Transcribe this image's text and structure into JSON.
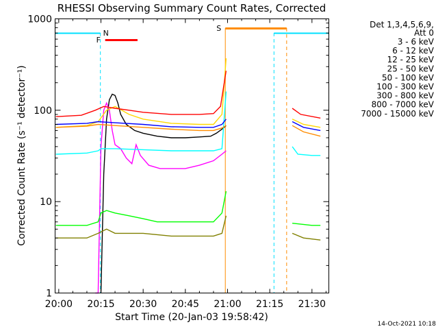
{
  "chart_data": {
    "type": "line",
    "title": "RHESSI Observing Summary Count Rates, Corrected",
    "xlabel": "Start Time (20-Jan-03 19:58:42)",
    "ylabel": "Corrected Count Rate (s⁻¹ detector⁻¹)",
    "y_scale": "log",
    "ylim": [
      1,
      1000
    ],
    "xlim_minutes_after_20:00": [
      -1.3,
      96
    ],
    "x_ticks": [
      {
        "value": 0,
        "label": "20:00"
      },
      {
        "value": 15,
        "label": "20:15"
      },
      {
        "value": 30,
        "label": "20:30"
      },
      {
        "value": 45,
        "label": "20:45"
      },
      {
        "value": 60,
        "label": "21:00"
      },
      {
        "value": 75,
        "label": "21:15"
      },
      {
        "value": 90,
        "label": "21:30"
      }
    ],
    "y_ticks": [
      {
        "value": 1,
        "label": "1"
      },
      {
        "value": 10,
        "label": "10"
      },
      {
        "value": 100,
        "label": "100"
      },
      {
        "value": 1000,
        "label": "1000"
      }
    ],
    "legend_header": [
      "Det 1,3,4,5,6,9,",
      "Att 0"
    ],
    "legend_position": "top-right",
    "timestamp": "14-Oct-2021 10:18",
    "flag_labels": {
      "night": "N",
      "flare": "F",
      "saa": "S"
    },
    "flag_colors": {
      "night": "#00e0ff",
      "flare": "#ff0000",
      "saa": "#ff8c00"
    },
    "flags": {
      "night": [
        [
          -1.3,
          14.8
        ],
        [
          76.5,
          96
        ]
      ],
      "flare": [
        [
          16.5,
          28
        ]
      ],
      "saa": [
        [
          59.2,
          81.0
        ]
      ]
    },
    "gaps": [
      [
        60,
        83
      ]
    ],
    "series": [
      {
        "name": "3 - 6 keV",
        "color": "#000000",
        "points": [
          [
            15,
            1
          ],
          [
            16,
            20
          ],
          [
            17,
            80
          ],
          [
            18,
            130
          ],
          [
            19,
            150
          ],
          [
            20,
            145
          ],
          [
            21,
            120
          ],
          [
            22,
            90
          ],
          [
            24,
            70
          ],
          [
            27,
            60
          ],
          [
            30,
            56
          ],
          [
            35,
            52
          ],
          [
            40,
            50
          ],
          [
            45,
            50
          ],
          [
            50,
            51
          ],
          [
            54,
            52
          ],
          [
            56,
            56
          ],
          [
            58,
            62
          ],
          [
            59.5,
            68
          ]
        ]
      },
      {
        "name": "6 - 12 keV",
        "color": "#ff00ff",
        "points": [
          [
            13,
            1
          ],
          [
            14,
            1
          ],
          [
            15,
            40
          ],
          [
            16,
            100
          ],
          [
            17,
            120
          ],
          [
            18,
            100
          ],
          [
            19,
            60
          ],
          [
            20,
            42
          ],
          [
            22,
            38
          ],
          [
            24,
            30
          ],
          [
            26,
            26
          ],
          [
            27.5,
            42
          ],
          [
            29,
            32
          ],
          [
            32,
            25
          ],
          [
            36,
            23
          ],
          [
            40,
            23
          ],
          [
            45,
            23
          ],
          [
            50,
            25
          ],
          [
            55,
            28
          ],
          [
            58,
            33
          ],
          [
            59.5,
            36
          ]
        ]
      },
      {
        "name": "12 - 25 keV",
        "color": "#00ff00",
        "points": [
          [
            -1,
            5.5
          ],
          [
            10,
            5.5
          ],
          [
            14,
            6
          ],
          [
            15,
            7.5
          ],
          [
            17,
            8
          ],
          [
            20,
            7.5
          ],
          [
            25,
            7
          ],
          [
            30,
            6.5
          ],
          [
            35,
            6
          ],
          [
            40,
            6
          ],
          [
            45,
            6
          ],
          [
            50,
            6
          ],
          [
            55,
            6
          ],
          [
            58,
            7.5
          ],
          [
            59.5,
            13
          ],
          [
            83,
            5.8
          ],
          [
            90,
            5.5
          ],
          [
            93,
            5.5
          ]
        ]
      },
      {
        "name": "25 - 50 keV",
        "color": "#00ffff",
        "points": [
          [
            -1,
            33
          ],
          [
            10,
            34
          ],
          [
            14,
            36
          ],
          [
            15,
            38
          ],
          [
            20,
            38
          ],
          [
            30,
            37
          ],
          [
            40,
            36
          ],
          [
            50,
            36
          ],
          [
            55,
            36
          ],
          [
            58,
            38
          ],
          [
            59.5,
            160
          ],
          [
            83,
            40
          ],
          [
            85,
            33
          ],
          [
            90,
            32
          ],
          [
            93,
            32
          ]
        ]
      },
      {
        "name": "50 - 100 keV",
        "color": "#ffd700",
        "points": [
          [
            -1,
            65
          ],
          [
            10,
            68
          ],
          [
            14,
            75
          ],
          [
            17,
            100
          ],
          [
            20,
            110
          ],
          [
            25,
            90
          ],
          [
            30,
            80
          ],
          [
            40,
            72
          ],
          [
            50,
            70
          ],
          [
            55,
            70
          ],
          [
            58,
            90
          ],
          [
            59.5,
            370
          ],
          [
            83,
            80
          ],
          [
            87,
            70
          ],
          [
            93,
            65
          ]
        ]
      },
      {
        "name": "100 - 300 keV",
        "color": "#ff0000",
        "points": [
          [
            -1,
            85
          ],
          [
            8,
            88
          ],
          [
            13,
            100
          ],
          [
            16,
            110
          ],
          [
            20,
            105
          ],
          [
            25,
            100
          ],
          [
            30,
            95
          ],
          [
            40,
            90
          ],
          [
            50,
            90
          ],
          [
            55,
            92
          ],
          [
            57.5,
            110
          ],
          [
            59.5,
            270
          ],
          [
            83,
            105
          ],
          [
            86,
            90
          ],
          [
            93,
            82
          ]
        ]
      },
      {
        "name": "300 - 800 keV",
        "color": "#0000ff",
        "points": [
          [
            -1,
            70
          ],
          [
            10,
            72
          ],
          [
            14,
            75
          ],
          [
            20,
            73
          ],
          [
            30,
            70
          ],
          [
            40,
            66
          ],
          [
            50,
            65
          ],
          [
            55,
            65
          ],
          [
            58,
            70
          ],
          [
            59.5,
            80
          ],
          [
            83,
            75
          ],
          [
            87,
            65
          ],
          [
            93,
            60
          ]
        ]
      },
      {
        "name": "800 - 7000 keV",
        "color": "#ff8c00",
        "points": [
          [
            -1,
            65
          ],
          [
            10,
            67
          ],
          [
            14,
            70
          ],
          [
            20,
            68
          ],
          [
            30,
            65
          ],
          [
            40,
            62
          ],
          [
            50,
            60
          ],
          [
            55,
            60
          ],
          [
            58,
            64
          ],
          [
            59.5,
            68
          ],
          [
            83,
            68
          ],
          [
            87,
            58
          ],
          [
            93,
            52
          ]
        ]
      },
      {
        "name": "7000 - 15000 keV",
        "color": "#808000",
        "points": [
          [
            -1,
            4
          ],
          [
            10,
            4
          ],
          [
            14,
            4.5
          ],
          [
            17,
            5
          ],
          [
            20,
            4.5
          ],
          [
            30,
            4.5
          ],
          [
            40,
            4.2
          ],
          [
            50,
            4.2
          ],
          [
            55,
            4.2
          ],
          [
            58,
            4.5
          ],
          [
            59.5,
            7
          ],
          [
            83,
            4.5
          ],
          [
            87,
            4
          ],
          [
            93,
            3.8
          ]
        ]
      }
    ]
  }
}
